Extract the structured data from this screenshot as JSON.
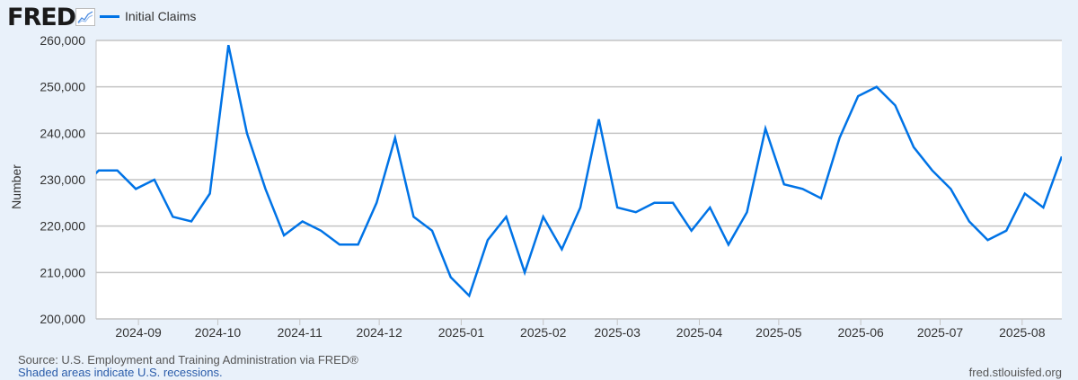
{
  "header": {
    "logo": "FRED",
    "logo_icon": "line-chart-icon"
  },
  "footer": {
    "source": "Source: U.S. Employment and Training Administration via FRED®",
    "recession_note": "Shaded areas indicate U.S. recessions.",
    "site": "fred.stlouisfed.org"
  },
  "chart_data": {
    "type": "line",
    "title": "",
    "xlabel": "",
    "ylabel": "Number",
    "ylim": [
      200000,
      260000
    ],
    "xlim": [
      "2024-08-16",
      "2025-08-16"
    ],
    "grid": true,
    "legend": "top-left",
    "y_ticks": [
      "200,000",
      "210,000",
      "220,000",
      "230,000",
      "240,000",
      "250,000",
      "260,000"
    ],
    "x_ticks": [
      "2024-09",
      "2024-10",
      "2024-11",
      "2024-12",
      "2025-01",
      "2025-02",
      "2025-03",
      "2025-04",
      "2025-05",
      "2025-06",
      "2025-07",
      "2025-08"
    ],
    "series": [
      {
        "name": "Initial Claims",
        "color": "#0073e6",
        "x": [
          "2024-08-10",
          "2024-08-17",
          "2024-08-24",
          "2024-08-31",
          "2024-09-07",
          "2024-09-14",
          "2024-09-21",
          "2024-09-28",
          "2024-10-05",
          "2024-10-12",
          "2024-10-19",
          "2024-10-26",
          "2024-11-02",
          "2024-11-09",
          "2024-11-16",
          "2024-11-23",
          "2024-11-30",
          "2024-12-07",
          "2024-12-14",
          "2024-12-21",
          "2024-12-28",
          "2025-01-04",
          "2025-01-11",
          "2025-01-18",
          "2025-01-25",
          "2025-02-01",
          "2025-02-08",
          "2025-02-15",
          "2025-02-22",
          "2025-03-01",
          "2025-03-08",
          "2025-03-15",
          "2025-03-22",
          "2025-03-29",
          "2025-04-05",
          "2025-04-12",
          "2025-04-19",
          "2025-04-26",
          "2025-05-03",
          "2025-05-10",
          "2025-05-17",
          "2025-05-24",
          "2025-05-31",
          "2025-06-07",
          "2025-06-14",
          "2025-06-21",
          "2025-06-28",
          "2025-07-05",
          "2025-07-12",
          "2025-07-19",
          "2025-07-26",
          "2025-08-02",
          "2025-08-09",
          "2025-08-16"
        ],
        "values": [
          228000,
          232000,
          232000,
          228000,
          230000,
          222000,
          221000,
          227000,
          259000,
          240000,
          228000,
          218000,
          221000,
          219000,
          216000,
          216000,
          225000,
          239000,
          222000,
          219000,
          209000,
          205000,
          217000,
          222000,
          210000,
          222000,
          215000,
          224000,
          243000,
          224000,
          223000,
          225000,
          225000,
          219000,
          224000,
          216000,
          223000,
          241000,
          229000,
          228000,
          226000,
          239000,
          248000,
          250000,
          246000,
          237000,
          232000,
          228000,
          221000,
          217000,
          219000,
          227000,
          224000,
          235000
        ]
      }
    ]
  }
}
